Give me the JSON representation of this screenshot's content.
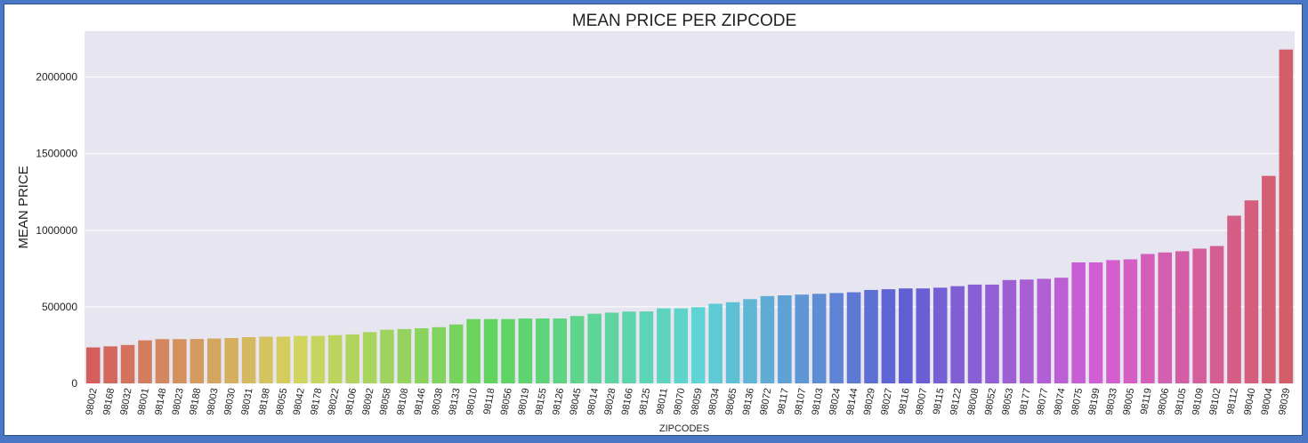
{
  "chart_data": {
    "type": "bar",
    "title": "MEAN PRICE PER ZIPCODE",
    "xlabel": "ZIPCODES",
    "ylabel": "MEAN PRICE",
    "ylim": [
      0,
      2300000
    ],
    "yticks": [
      0,
      500000,
      1000000,
      1500000,
      2000000
    ],
    "grid": true,
    "plot_background": "#e6e5f0",
    "categories": [
      "98002",
      "98168",
      "98032",
      "98001",
      "98148",
      "98023",
      "98188",
      "98003",
      "98030",
      "98031",
      "98198",
      "98055",
      "98042",
      "98178",
      "98022",
      "98106",
      "98092",
      "98058",
      "98108",
      "98146",
      "98038",
      "98133",
      "98010",
      "98118",
      "98056",
      "98019",
      "98155",
      "98126",
      "98045",
      "98014",
      "98028",
      "98166",
      "98125",
      "98011",
      "98070",
      "98059",
      "98034",
      "98065",
      "98136",
      "98072",
      "98117",
      "98107",
      "98103",
      "98024",
      "98144",
      "98029",
      "98027",
      "98116",
      "98007",
      "98115",
      "98122",
      "98008",
      "98052",
      "98053",
      "98177",
      "98077",
      "98074",
      "98075",
      "98199",
      "98033",
      "98005",
      "98119",
      "98006",
      "98105",
      "98109",
      "98102",
      "98112",
      "98040",
      "98004",
      "98039"
    ],
    "values": [
      235000,
      242000,
      251000,
      281000,
      289000,
      289000,
      290000,
      293000,
      296000,
      302000,
      305000,
      305000,
      310000,
      310000,
      315000,
      320000,
      335000,
      350000,
      355000,
      360000,
      367000,
      385000,
      420000,
      420000,
      420000,
      424000,
      424000,
      424000,
      440000,
      455000,
      462000,
      469000,
      470000,
      490000,
      490000,
      498000,
      520000,
      530000,
      550000,
      570000,
      575000,
      580000,
      585000,
      590000,
      595000,
      610000,
      615000,
      620000,
      620000,
      625000,
      635000,
      645000,
      645000,
      675000,
      678000,
      683000,
      690000,
      790000,
      790000,
      805000,
      810000,
      845000,
      855000,
      863000,
      880000,
      897000,
      1095000,
      1195000,
      1355000,
      2180000
    ]
  }
}
